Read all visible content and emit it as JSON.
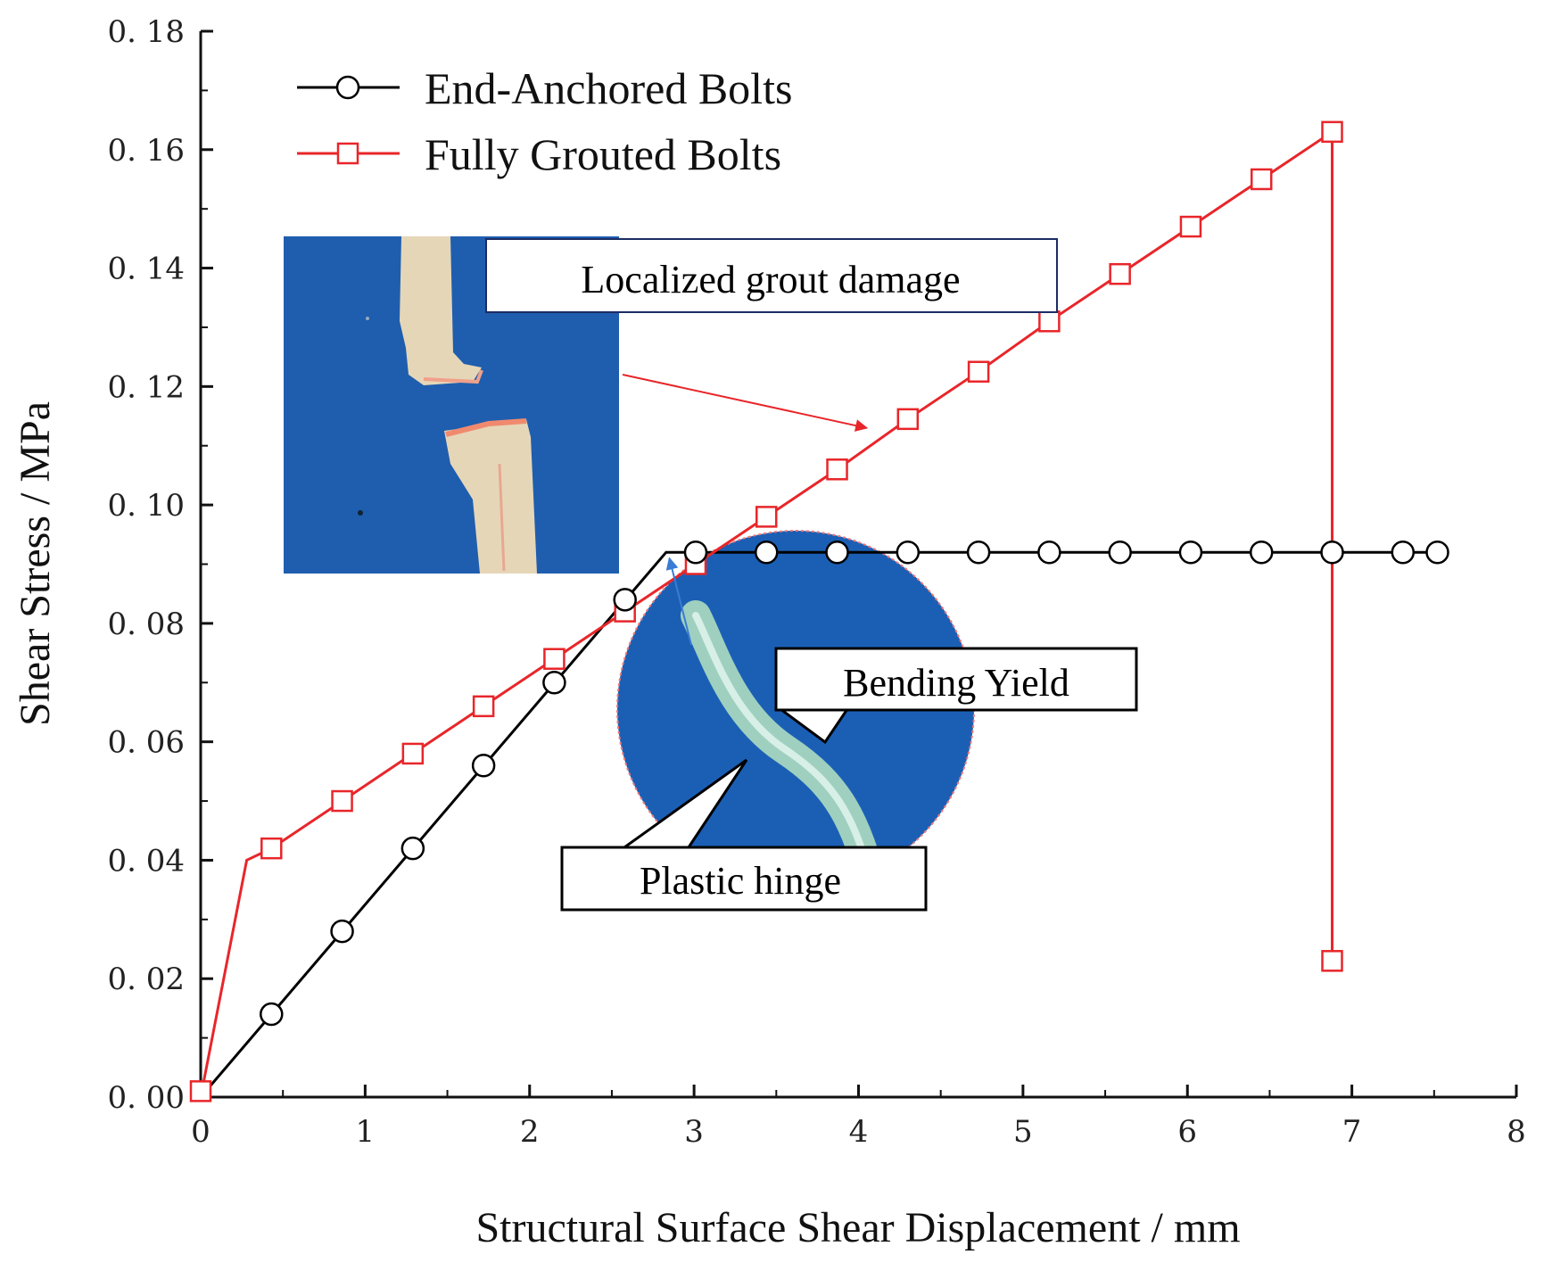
{
  "chart_data": {
    "type": "line",
    "xlabel": "Structural Surface Shear Displacement / mm",
    "ylabel": "Shear Stress / MPa",
    "xlim": [
      0,
      8
    ],
    "ylim": [
      0,
      0.18
    ],
    "x_ticks": [
      "0",
      "1",
      "2",
      "3",
      "4",
      "5",
      "6",
      "7",
      "8"
    ],
    "y_ticks": [
      "0. 00",
      "0. 02",
      "0. 04",
      "0. 06",
      "0. 08",
      "0. 10",
      "0. 12",
      "0. 14",
      "0. 16",
      "0. 18"
    ],
    "grid": false,
    "legend_position": "top-left",
    "series": [
      {
        "name": "End-Anchored Bolts",
        "color": "#000000",
        "marker": "circle",
        "line_points": [
          [
            0,
            0
          ],
          [
            2.83,
            0.092
          ],
          [
            7.52,
            0.092
          ]
        ],
        "marker_points": [
          [
            0.43,
            0.014
          ],
          [
            0.86,
            0.028
          ],
          [
            1.29,
            0.042
          ],
          [
            1.72,
            0.056
          ],
          [
            2.15,
            0.07
          ],
          [
            2.58,
            0.084
          ],
          [
            3.01,
            0.092
          ],
          [
            3.44,
            0.092
          ],
          [
            3.87,
            0.092
          ],
          [
            4.3,
            0.092
          ],
          [
            4.73,
            0.092
          ],
          [
            5.16,
            0.092
          ],
          [
            5.59,
            0.092
          ],
          [
            6.02,
            0.092
          ],
          [
            6.45,
            0.092
          ],
          [
            6.88,
            0.092
          ],
          [
            7.31,
            0.092
          ],
          [
            7.52,
            0.092
          ]
        ]
      },
      {
        "name": "Fully Grouted Bolts",
        "color": "#e8262a",
        "marker": "square",
        "line_points": [
          [
            0,
            0
          ],
          [
            0.28,
            0.04
          ],
          [
            0.43,
            0.042
          ],
          [
            0.86,
            0.05
          ],
          [
            1.29,
            0.058
          ],
          [
            1.72,
            0.066
          ],
          [
            2.15,
            0.074
          ],
          [
            2.58,
            0.082
          ],
          [
            3.01,
            0.09
          ],
          [
            3.44,
            0.098
          ],
          [
            3.87,
            0.106
          ],
          [
            4.3,
            0.1145
          ],
          [
            4.73,
            0.1225
          ],
          [
            5.16,
            0.131
          ],
          [
            5.59,
            0.139
          ],
          [
            6.02,
            0.147
          ],
          [
            6.45,
            0.155
          ],
          [
            6.88,
            0.163
          ],
          [
            6.88,
            0.023
          ]
        ],
        "marker_points": [
          [
            0,
            0.001
          ],
          [
            0.43,
            0.042
          ],
          [
            0.86,
            0.05
          ],
          [
            1.29,
            0.058
          ],
          [
            1.72,
            0.066
          ],
          [
            2.15,
            0.074
          ],
          [
            2.58,
            0.082
          ],
          [
            3.01,
            0.09
          ],
          [
            3.44,
            0.098
          ],
          [
            3.87,
            0.106
          ],
          [
            4.3,
            0.1145
          ],
          [
            4.73,
            0.1225
          ],
          [
            5.16,
            0.131
          ],
          [
            5.59,
            0.139
          ],
          [
            6.02,
            0.147
          ],
          [
            6.45,
            0.155
          ],
          [
            6.88,
            0.163
          ],
          [
            6.88,
            0.023
          ]
        ]
      }
    ],
    "annotations": [
      {
        "text": "Localized grout damage",
        "points_to": [
          4.05,
          0.113
        ],
        "arrow_color": "#e8262a"
      },
      {
        "text": "Bending Yield"
      },
      {
        "text": "Plastic hinge"
      },
      {
        "points_to": [
          2.85,
          0.091
        ],
        "arrow_color": "#3a7bd5"
      }
    ]
  },
  "photos": {
    "grout_photo": "photo of fractured grout column on blue background",
    "hinge_photo": "circular photo of bent bolt on blue background"
  },
  "colors": {
    "photo_blue": "#1d59a9",
    "grout": "#e6d6b8",
    "bolt": "#a9d6c4"
  }
}
